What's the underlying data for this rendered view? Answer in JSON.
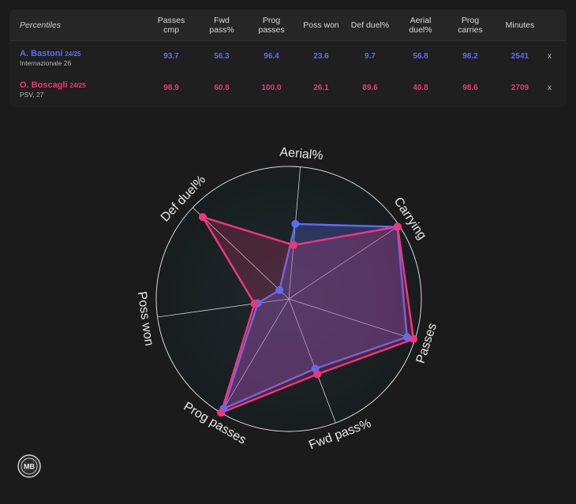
{
  "table": {
    "header_label": "Percentiles",
    "columns": [
      "Passes\ncmp",
      "Fwd\npass%",
      "Prog\npasses",
      "Poss won",
      "Def duel%",
      "Aerial\nduel%",
      "Prog\ncarries",
      "Minutes"
    ],
    "remove_label": "x",
    "players": [
      {
        "name": "A. Bastoni",
        "season": "24/25",
        "club": "Internazionale 26",
        "values": [
          "93.7",
          "56.3",
          "96.4",
          "23.6",
          "9.7",
          "56.8",
          "98.2",
          "2541"
        ],
        "color": "#5a6cf2"
      },
      {
        "name": "O. Boscagli",
        "season": "24/25",
        "club": "PSV, 27",
        "values": [
          "98.9",
          "60.8",
          "100.0",
          "26.1",
          "89.6",
          "40.8",
          "98.6",
          "2709"
        ],
        "color": "#f0357c"
      }
    ]
  },
  "chart_data": {
    "type": "radar",
    "axes": [
      "Aerial%",
      "Carrying",
      "Passes",
      "Fwd pass%",
      "Prog passes",
      "Poss won",
      "Def duel%"
    ],
    "range": [
      0,
      100
    ],
    "series": [
      {
        "name": "A. Bastoni",
        "color": "#5a6cf2",
        "values": [
          56.8,
          98.2,
          93.7,
          56.3,
          96.4,
          23.6,
          9.7
        ]
      },
      {
        "name": "O. Boscagli",
        "color": "#f0357c",
        "values": [
          40.8,
          98.6,
          98.9,
          60.8,
          100.0,
          26.1,
          89.6
        ]
      }
    ]
  },
  "logo": {
    "text": "MB"
  }
}
